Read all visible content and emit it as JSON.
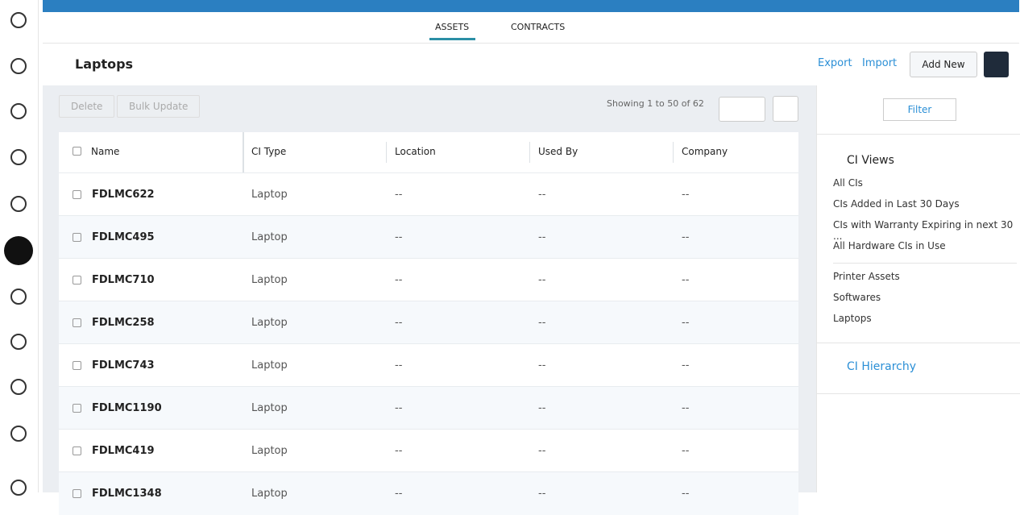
{
  "tabs": [
    "ASSETS",
    "CONTRACTS"
  ],
  "header": {
    "title": "Laptops",
    "export": "Export",
    "import": "Import",
    "add_new": "Add New"
  },
  "toolbar": {
    "delete": "Delete",
    "bulk_update": "Bulk Update",
    "showing": "Showing 1 to 50 of 62"
  },
  "table": {
    "columns": [
      "Name",
      "CI Type",
      "Location",
      "Used By",
      "Company"
    ],
    "rows": [
      [
        "FDLMC622",
        "Laptop",
        "--",
        "--",
        "--"
      ],
      [
        "FDLMC495",
        "Laptop",
        "--",
        "--",
        "--"
      ],
      [
        "FDLMC710",
        "Laptop",
        "--",
        "--",
        "--"
      ],
      [
        "FDLMC258",
        "Laptop",
        "--",
        "--",
        "--"
      ],
      [
        "FDLMC743",
        "Laptop",
        "--",
        "--",
        "--"
      ],
      [
        "FDLMC1190",
        "Laptop",
        "--",
        "--",
        "--"
      ],
      [
        "FDLMC419",
        "Laptop",
        "--",
        "--",
        "--"
      ],
      [
        "FDLMC1348",
        "Laptop",
        "--",
        "--",
        "--"
      ]
    ]
  },
  "sidebar": {
    "filter": "Filter",
    "views_title": "CI Views",
    "views": [
      "All CIs",
      "CIs Added in Last 30 Days",
      "CIs with Warranty Expiring in next 30 ...",
      "All Hardware CIs in Use"
    ],
    "custom_views": [
      "Printer Assets",
      "Softwares",
      "Laptops"
    ],
    "hierarchy": "CI Hierarchy"
  }
}
